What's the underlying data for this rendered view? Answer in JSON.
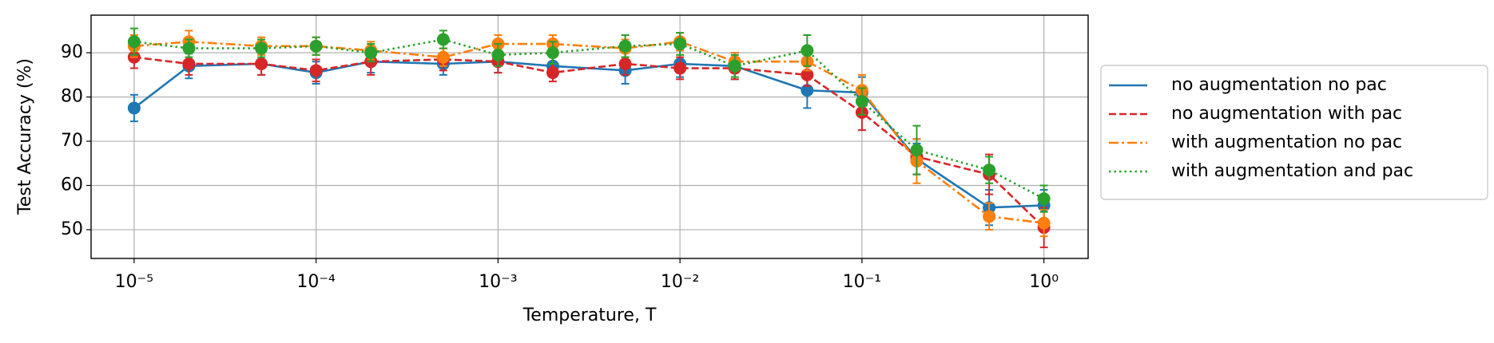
{
  "chart_data": {
    "type": "line",
    "x_label": "Temperature, T",
    "y_label": "Test Accuracy (%)",
    "log_x": true,
    "grid": true,
    "legend": "outside right",
    "x": [
      1e-05,
      2e-05,
      5e-05,
      0.0001,
      0.0002,
      0.0005,
      0.001,
      0.002,
      0.005,
      0.01,
      0.02,
      0.05,
      0.1,
      0.2,
      0.5,
      1
    ],
    "xlim": [
      5.8e-06,
      1.75
    ],
    "xticks": [
      {
        "value": 1e-05,
        "label": "10⁻⁵"
      },
      {
        "value": 0.0001,
        "label": "10⁻⁴"
      },
      {
        "value": 0.001,
        "label": "10⁻³"
      },
      {
        "value": 0.01,
        "label": "10⁻²"
      },
      {
        "value": 0.1,
        "label": "10⁻¹"
      },
      {
        "value": 1,
        "label": "10⁰"
      }
    ],
    "ylim": [
      43.5,
      98.5
    ],
    "yticks": [
      50,
      60,
      70,
      80,
      90
    ],
    "series": [
      {
        "name": "no augmentation no pac",
        "color": "#1f77b4",
        "linestyle": "solid",
        "values": [
          77.5,
          87,
          87.5,
          85.5,
          88,
          87.5,
          88,
          87,
          86,
          87.5,
          87,
          81.5,
          81,
          66,
          55,
          55.5
        ],
        "errors": [
          3,
          2.8,
          2.5,
          2.5,
          2.5,
          2.5,
          2.5,
          2.5,
          3,
          3,
          3,
          4,
          3.5,
          3.5,
          4,
          3.5
        ]
      },
      {
        "name": "no augmentation with pac",
        "color": "#d62728",
        "linestyle": "dashed",
        "values": [
          89,
          87.5,
          87.5,
          86,
          88,
          88.5,
          88,
          85.5,
          87.5,
          86.5,
          86.5,
          85,
          76.5,
          66.5,
          62.5,
          50.5
        ],
        "errors": [
          2.5,
          2.5,
          2.5,
          2.5,
          3,
          2.5,
          2.5,
          2,
          2.5,
          2.5,
          2.5,
          2.5,
          4,
          4,
          4.5,
          4.5
        ]
      },
      {
        "name": "with augmentation no pac",
        "color": "#ff7f0e",
        "linestyle": "dashdot",
        "values": [
          91.5,
          92.5,
          91.5,
          91.5,
          90.5,
          89,
          92,
          92,
          91,
          92.5,
          88,
          88,
          81.5,
          65.5,
          53,
          51.5
        ],
        "errors": [
          2.5,
          2.5,
          2,
          2,
          2,
          2,
          2,
          2,
          2,
          2,
          2,
          2,
          3.5,
          5,
          3,
          3
        ]
      },
      {
        "name": "with augmentation and pac",
        "color": "#2ca02c",
        "linestyle": "dotted",
        "values": [
          92.5,
          91,
          91,
          91.5,
          90,
          93,
          89.5,
          90,
          91.5,
          92,
          87,
          90.5,
          79,
          68,
          63.5,
          57
        ],
        "errors": [
          3,
          2,
          2,
          2,
          2,
          2,
          2.5,
          2.5,
          2.5,
          2.5,
          2.5,
          3.5,
          3,
          5.5,
          3,
          3
        ]
      }
    ]
  }
}
